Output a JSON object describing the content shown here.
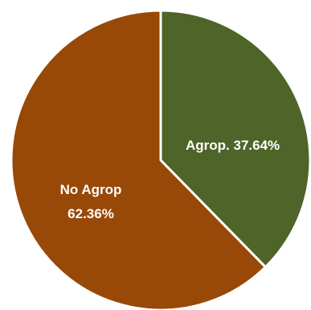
{
  "chart_data": {
    "type": "pie",
    "slices": [
      {
        "label": "Agrop.",
        "value": 37.64,
        "display": "Agrop. 37.64%",
        "color": "#4e6428",
        "legend_key_color": "#4e6428"
      },
      {
        "label": "No Agrop",
        "value": 62.36,
        "display_line1": "No Agrop",
        "display_line2": "62.36%",
        "color": "#984807"
      }
    ],
    "start": "top",
    "direction": "clockwise",
    "legend": "none",
    "title": ""
  }
}
